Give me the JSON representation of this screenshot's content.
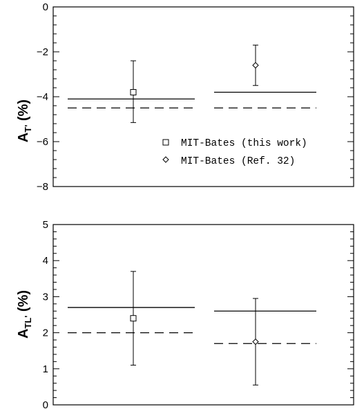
{
  "chart_data": [
    {
      "type": "scatter",
      "ylabel": {
        "main": "A",
        "sub": "T'",
        "unit": "(%)"
      },
      "ylim": [
        -8,
        0
      ],
      "yticks": [
        0,
        -2,
        -4,
        -6,
        -8
      ],
      "grid": false,
      "legend_position": "lower-right",
      "series": [
        {
          "name": "MIT-Bates (this work)",
          "marker": "square",
          "x": [
            1
          ],
          "y": [
            -3.8
          ],
          "err_low": [
            -5.15
          ],
          "err_high": [
            -2.4
          ],
          "solid_line": -4.1,
          "dashed_line": -4.5
        },
        {
          "name": "MIT-Bates (Ref. 32)",
          "marker": "diamond",
          "x": [
            2
          ],
          "y": [
            -2.6
          ],
          "err_low": [
            -3.5
          ],
          "err_high": [
            -1.7
          ],
          "solid_line": -3.8,
          "dashed_line": -4.5
        }
      ]
    },
    {
      "type": "scatter",
      "ylabel": {
        "main": "A",
        "sub": "TL'",
        "unit": "(%)"
      },
      "ylim": [
        0,
        5
      ],
      "yticks": [
        0,
        1,
        2,
        3,
        4,
        5
      ],
      "grid": false,
      "series": [
        {
          "name": "MIT-Bates (this work)",
          "marker": "square",
          "x": [
            1
          ],
          "y": [
            2.4
          ],
          "err_low": [
            1.1
          ],
          "err_high": [
            3.7
          ],
          "solid_line": 2.7,
          "dashed_line": 2.0
        },
        {
          "name": "MIT-Bates (Ref. 32)",
          "marker": "diamond",
          "x": [
            2
          ],
          "y": [
            1.75
          ],
          "err_low": [
            0.55
          ],
          "err_high": [
            2.95
          ],
          "solid_line": 2.6,
          "dashed_line": 1.7
        }
      ]
    }
  ]
}
